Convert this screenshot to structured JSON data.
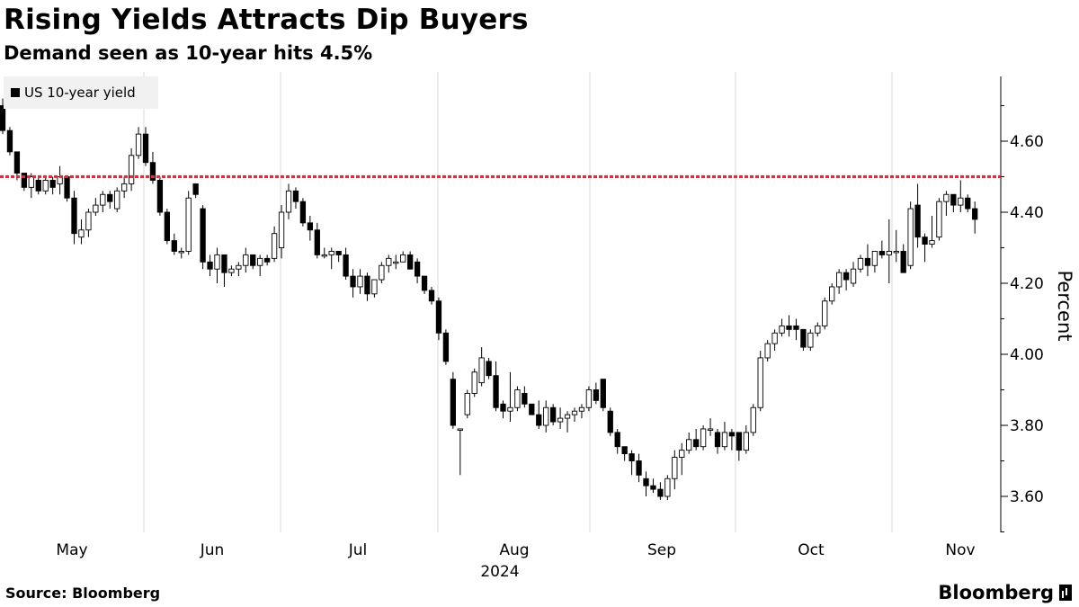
{
  "header": {
    "title": "Rising Yields Attracts Dip Buyers",
    "subtitle": "Demand seen as 10-year hits 4.5%"
  },
  "footer": {
    "source": "Source: Bloomberg",
    "brand": "Bloomberg"
  },
  "colors": {
    "threshold": "#e8283c",
    "candle_up_fill": "#ffffff",
    "candle_down_fill": "#000000",
    "grid": "#d9d9d9"
  },
  "chart_data": {
    "type": "candlestick",
    "title": "Rising Yields Attracts Dip Buyers",
    "subtitle": "Demand seen as 10-year hits 4.5%",
    "legend": "US 10-year yield",
    "ylabel": "Percent",
    "ylim": [
      3.48,
      4.78
    ],
    "yticks": [
      3.6,
      3.8,
      4.0,
      4.2,
      4.4,
      4.6
    ],
    "ytick_labels": [
      "3.60",
      "3.80",
      "4.00",
      "4.20",
      "4.40",
      "4.60"
    ],
    "xlabels": [
      "May",
      "Jun",
      "Jul",
      "Aug",
      "Sep",
      "Oct",
      "Nov"
    ],
    "year_label": "2024",
    "threshold_value": 4.5,
    "candles": [
      [
        4.7,
        4.72,
        4.62,
        4.63
      ],
      [
        4.63,
        4.64,
        4.56,
        4.57
      ],
      [
        4.57,
        4.57,
        4.49,
        4.51
      ],
      [
        4.51,
        4.51,
        4.46,
        4.47
      ],
      [
        4.47,
        4.51,
        4.44,
        4.5
      ],
      [
        4.49,
        4.5,
        4.45,
        4.46
      ],
      [
        4.46,
        4.5,
        4.45,
        4.49
      ],
      [
        4.49,
        4.5,
        4.45,
        4.47
      ],
      [
        4.48,
        4.53,
        4.45,
        4.5
      ],
      [
        4.5,
        4.5,
        4.43,
        4.44
      ],
      [
        4.44,
        4.46,
        4.31,
        4.34
      ],
      [
        4.33,
        4.38,
        4.31,
        4.35
      ],
      [
        4.35,
        4.41,
        4.33,
        4.4
      ],
      [
        4.4,
        4.44,
        4.39,
        4.42
      ],
      [
        4.42,
        4.46,
        4.4,
        4.45
      ],
      [
        4.45,
        4.46,
        4.41,
        4.43
      ],
      [
        4.41,
        4.47,
        4.4,
        4.46
      ],
      [
        4.46,
        4.5,
        4.44,
        4.48
      ],
      [
        4.48,
        4.58,
        4.46,
        4.56
      ],
      [
        4.56,
        4.64,
        4.55,
        4.62
      ],
      [
        4.62,
        4.64,
        4.53,
        4.54
      ],
      [
        4.54,
        4.57,
        4.48,
        4.49
      ],
      [
        4.49,
        4.5,
        4.39,
        4.4
      ],
      [
        4.4,
        4.41,
        4.31,
        4.32
      ],
      [
        4.32,
        4.34,
        4.28,
        4.29
      ],
      [
        4.29,
        4.3,
        4.27,
        4.29
      ],
      [
        4.29,
        4.46,
        4.28,
        4.44
      ],
      [
        4.48,
        4.48,
        4.44,
        4.45
      ],
      [
        4.41,
        4.42,
        4.24,
        4.26
      ],
      [
        4.26,
        4.28,
        4.22,
        4.24
      ],
      [
        4.24,
        4.3,
        4.2,
        4.28
      ],
      [
        4.28,
        4.28,
        4.19,
        4.23
      ],
      [
        4.23,
        4.25,
        4.22,
        4.24
      ],
      [
        4.24,
        4.26,
        4.22,
        4.25
      ],
      [
        4.25,
        4.3,
        4.23,
        4.28
      ],
      [
        4.28,
        4.28,
        4.24,
        4.25
      ],
      [
        4.25,
        4.28,
        4.22,
        4.27
      ],
      [
        4.27,
        4.28,
        4.25,
        4.26
      ],
      [
        4.27,
        4.36,
        4.26,
        4.34
      ],
      [
        4.3,
        4.42,
        4.27,
        4.4
      ],
      [
        4.4,
        4.48,
        4.38,
        4.46
      ],
      [
        4.46,
        4.47,
        4.41,
        4.43
      ],
      [
        4.43,
        4.44,
        4.36,
        4.37
      ],
      [
        4.37,
        4.39,
        4.32,
        4.35
      ],
      [
        4.35,
        4.37,
        4.27,
        4.28
      ],
      [
        4.28,
        4.3,
        4.27,
        4.28
      ],
      [
        4.28,
        4.3,
        4.24,
        4.29
      ],
      [
        4.29,
        4.29,
        4.26,
        4.28
      ],
      [
        4.28,
        4.3,
        4.21,
        4.22
      ],
      [
        4.22,
        4.24,
        4.16,
        4.19
      ],
      [
        4.19,
        4.24,
        4.17,
        4.22
      ],
      [
        4.22,
        4.23,
        4.15,
        4.17
      ],
      [
        4.17,
        4.21,
        4.16,
        4.21
      ],
      [
        4.21,
        4.26,
        4.2,
        4.25
      ],
      [
        4.25,
        4.28,
        4.23,
        4.27
      ],
      [
        4.26,
        4.28,
        4.24,
        4.26
      ],
      [
        4.26,
        4.29,
        4.26,
        4.28
      ],
      [
        4.28,
        4.29,
        4.24,
        4.24
      ],
      [
        4.26,
        4.27,
        4.2,
        4.22
      ],
      [
        4.22,
        4.22,
        4.17,
        4.18
      ],
      [
        4.18,
        4.19,
        4.14,
        4.15
      ],
      [
        4.15,
        4.16,
        4.04,
        4.06
      ],
      [
        4.06,
        4.07,
        3.97,
        3.98
      ],
      [
        3.93,
        3.95,
        3.79,
        3.8
      ],
      [
        3.79,
        3.79,
        3.66,
        3.79
      ],
      [
        3.83,
        3.9,
        3.82,
        3.89
      ],
      [
        3.89,
        3.96,
        3.88,
        3.95
      ],
      [
        3.92,
        4.02,
        3.91,
        3.99
      ],
      [
        3.98,
        3.99,
        3.93,
        3.94
      ],
      [
        3.94,
        3.98,
        3.84,
        3.85
      ],
      [
        3.86,
        3.87,
        3.82,
        3.84
      ],
      [
        3.84,
        3.95,
        3.81,
        3.85
      ],
      [
        3.85,
        3.91,
        3.84,
        3.9
      ],
      [
        3.89,
        3.91,
        3.85,
        3.86
      ],
      [
        3.86,
        3.86,
        3.83,
        3.83
      ],
      [
        3.83,
        3.87,
        3.79,
        3.8
      ],
      [
        3.8,
        3.87,
        3.78,
        3.85
      ],
      [
        3.85,
        3.86,
        3.8,
        3.81
      ],
      [
        3.81,
        3.85,
        3.79,
        3.82
      ],
      [
        3.82,
        3.84,
        3.78,
        3.83
      ],
      [
        3.83,
        3.85,
        3.81,
        3.84
      ],
      [
        3.84,
        3.86,
        3.82,
        3.85
      ],
      [
        3.85,
        3.91,
        3.84,
        3.9
      ],
      [
        3.9,
        3.92,
        3.86,
        3.87
      ],
      [
        3.93,
        3.93,
        3.84,
        3.85
      ],
      [
        3.84,
        3.85,
        3.77,
        3.78
      ],
      [
        3.78,
        3.79,
        3.72,
        3.74
      ],
      [
        3.74,
        3.74,
        3.7,
        3.72
      ],
      [
        3.72,
        3.73,
        3.66,
        3.7
      ],
      [
        3.7,
        3.72,
        3.64,
        3.66
      ],
      [
        3.65,
        3.67,
        3.6,
        3.63
      ],
      [
        3.63,
        3.65,
        3.61,
        3.62
      ],
      [
        3.62,
        3.64,
        3.59,
        3.6
      ],
      [
        3.6,
        3.66,
        3.59,
        3.65
      ],
      [
        3.65,
        3.73,
        3.62,
        3.71
      ],
      [
        3.71,
        3.75,
        3.66,
        3.73
      ],
      [
        3.73,
        3.78,
        3.72,
        3.76
      ],
      [
        3.76,
        3.79,
        3.73,
        3.74
      ],
      [
        3.74,
        3.8,
        3.73,
        3.79
      ],
      [
        3.79,
        3.82,
        3.77,
        3.79
      ],
      [
        3.78,
        3.79,
        3.72,
        3.74
      ],
      [
        3.74,
        3.81,
        3.73,
        3.78
      ],
      [
        3.78,
        3.79,
        3.73,
        3.77
      ],
      [
        3.78,
        3.78,
        3.7,
        3.73
      ],
      [
        3.73,
        3.8,
        3.72,
        3.78
      ],
      [
        3.78,
        3.86,
        3.77,
        3.85
      ],
      [
        3.85,
        4.01,
        3.84,
        3.99
      ],
      [
        3.99,
        4.04,
        3.98,
        4.03
      ],
      [
        4.03,
        4.07,
        4.01,
        4.06
      ],
      [
        4.06,
        4.1,
        4.05,
        4.08
      ],
      [
        4.08,
        4.11,
        4.05,
        4.07
      ],
      [
        4.08,
        4.1,
        4.04,
        4.07
      ],
      [
        4.07,
        4.07,
        4.01,
        4.02
      ],
      [
        4.02,
        4.07,
        4.01,
        4.06
      ],
      [
        4.06,
        4.09,
        4.05,
        4.08
      ],
      [
        4.08,
        4.16,
        4.07,
        4.15
      ],
      [
        4.15,
        4.2,
        4.14,
        4.19
      ],
      [
        4.19,
        4.24,
        4.17,
        4.23
      ],
      [
        4.23,
        4.24,
        4.18,
        4.21
      ],
      [
        4.2,
        4.26,
        4.19,
        4.24
      ],
      [
        4.24,
        4.28,
        4.23,
        4.27
      ],
      [
        4.27,
        4.31,
        4.22,
        4.25
      ],
      [
        4.25,
        4.29,
        4.23,
        4.29
      ],
      [
        4.29,
        4.32,
        4.27,
        4.28
      ],
      [
        4.28,
        4.38,
        4.2,
        4.29
      ],
      [
        4.29,
        4.35,
        4.26,
        4.29
      ],
      [
        4.29,
        4.31,
        4.23,
        4.23
      ],
      [
        4.25,
        4.43,
        4.24,
        4.41
      ],
      [
        4.42,
        4.48,
        4.3,
        4.33
      ],
      [
        4.33,
        4.34,
        4.26,
        4.31
      ],
      [
        4.31,
        4.39,
        4.3,
        4.32
      ],
      [
        4.33,
        4.44,
        4.32,
        4.43
      ],
      [
        4.43,
        4.46,
        4.39,
        4.45
      ],
      [
        4.45,
        4.45,
        4.4,
        4.42
      ],
      [
        4.42,
        4.49,
        4.4,
        4.44
      ],
      [
        4.44,
        4.45,
        4.4,
        4.41
      ],
      [
        4.41,
        4.43,
        4.34,
        4.38
      ]
    ]
  }
}
